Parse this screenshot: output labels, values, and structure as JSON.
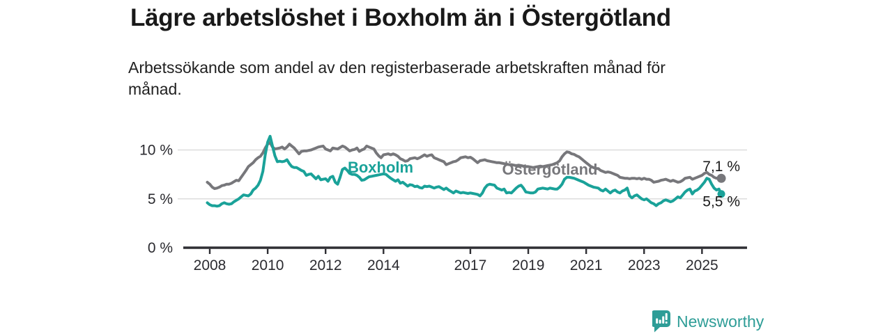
{
  "header": {
    "title": "Lägre arbetslöshet i Boxholm än i Östergötland",
    "subtitle": "Arbetssökande som andel av den registerbaserade arbetskraften månad för månad."
  },
  "footer": {
    "brand": "Newsworthy"
  },
  "colors": {
    "boxholm": "#1AA299",
    "ostergotland": "#77777B",
    "grid": "#DCDCDC",
    "axis": "#2E2E33",
    "tick_text": "#2B2B30",
    "annotation_text": "#1B1B1B",
    "brand_teal": "#2E9D97"
  },
  "chart_data": {
    "type": "line",
    "unit": "%",
    "frequency": "monthly",
    "x_start": "2007-12",
    "x_end": "2025-09",
    "x_ticks": [
      2008,
      2010,
      2012,
      2014,
      2017,
      2019,
      2021,
      2023,
      2025
    ],
    "y_ticks": [
      {
        "value": 0,
        "label": "0 %"
      },
      {
        "value": 5,
        "label": "5 %"
      },
      {
        "value": 10,
        "label": "10 %"
      }
    ],
    "ylim": [
      0,
      12
    ],
    "grid": "horizontal",
    "legend_position": "inline-labels",
    "series": [
      {
        "name": "Östergötland",
        "color": "#77777B",
        "end_label": "7,1 %",
        "last_value": 7.1,
        "values": [
          6.7,
          6.5,
          6.2,
          6.05,
          6.1,
          6.2,
          6.35,
          6.4,
          6.5,
          6.5,
          6.6,
          6.75,
          6.9,
          6.85,
          7.2,
          7.55,
          7.9,
          8.3,
          8.5,
          8.7,
          9.0,
          9.2,
          9.35,
          9.7,
          10.2,
          10.6,
          10.75,
          10.3,
          10.1,
          10.15,
          10.2,
          10.3,
          10.1,
          10.3,
          10.6,
          10.4,
          10.2,
          9.9,
          9.6,
          9.85,
          9.9,
          9.9,
          9.95,
          10.0,
          10.1,
          10.2,
          10.3,
          10.35,
          10.4,
          10.1,
          10.0,
          9.9,
          10.2,
          10.15,
          10.1,
          10.25,
          10.4,
          10.3,
          10.1,
          9.9,
          10.0,
          10.05,
          10.2,
          9.85,
          10.0,
          10.1,
          10.4,
          10.3,
          10.2,
          10.1,
          9.7,
          9.4,
          9.2,
          9.5,
          9.55,
          9.6,
          9.5,
          9.6,
          9.5,
          9.35,
          9.1,
          9.0,
          8.85,
          8.9,
          9.1,
          9.15,
          9.2,
          9.1,
          9.2,
          9.35,
          9.5,
          9.35,
          9.45,
          9.5,
          9.2,
          9.1,
          9.0,
          8.9,
          8.8,
          8.5,
          8.6,
          8.7,
          8.8,
          8.85,
          9.0,
          9.2,
          9.25,
          9.3,
          9.2,
          9.25,
          9.1,
          8.9,
          8.7,
          8.9,
          8.95,
          9.0,
          8.9,
          8.85,
          8.8,
          8.75,
          8.7,
          8.7,
          8.65,
          8.6,
          8.55,
          8.5,
          8.5,
          8.45,
          8.4,
          8.45,
          8.4,
          8.35,
          8.3,
          8.3,
          8.25,
          8.2,
          8.25,
          8.3,
          8.35,
          8.3,
          8.35,
          8.4,
          8.45,
          8.5,
          8.6,
          8.7,
          8.9,
          9.3,
          9.6,
          9.8,
          9.75,
          9.6,
          9.55,
          9.4,
          9.3,
          9.1,
          8.9,
          8.7,
          8.5,
          8.3,
          8.2,
          8.1,
          8.1,
          7.9,
          7.8,
          7.7,
          7.75,
          7.7,
          7.6,
          7.5,
          7.4,
          7.2,
          7.15,
          7.1,
          7.1,
          7.05,
          7.1,
          7.1,
          7.05,
          7.1,
          7.0,
          7.1,
          7.0,
          7.0,
          6.9,
          6.7,
          6.75,
          6.8,
          6.9,
          6.95,
          7.0,
          6.9,
          6.8,
          6.9,
          6.8,
          6.7,
          6.75,
          6.9,
          7.1,
          7.15,
          7.2,
          7.0,
          7.1,
          7.2,
          7.3,
          7.4,
          7.6,
          7.7,
          7.5,
          7.4,
          7.2,
          7.1,
          7.15,
          7.1
        ]
      },
      {
        "name": "Boxholm",
        "color": "#1AA299",
        "end_label": "5,5 %",
        "last_value": 5.5,
        "values": [
          4.6,
          4.4,
          4.3,
          4.3,
          4.25,
          4.3,
          4.5,
          4.6,
          4.5,
          4.45,
          4.5,
          4.7,
          4.85,
          5.0,
          5.2,
          5.4,
          5.35,
          5.3,
          5.5,
          5.9,
          6.1,
          6.4,
          6.9,
          7.8,
          9.5,
          10.8,
          11.4,
          10.4,
          9.4,
          8.8,
          8.85,
          8.8,
          8.85,
          9.0,
          8.6,
          8.3,
          8.2,
          8.2,
          8.05,
          7.9,
          7.8,
          7.4,
          7.5,
          7.55,
          7.3,
          7.05,
          7.3,
          6.95,
          7.0,
          7.05,
          6.8,
          7.2,
          7.3,
          6.7,
          6.5,
          7.2,
          8.0,
          8.15,
          7.9,
          7.6,
          7.5,
          7.5,
          7.4,
          7.2,
          6.9,
          6.95,
          7.1,
          7.25,
          7.3,
          7.35,
          7.4,
          7.45,
          7.5,
          7.55,
          7.5,
          7.3,
          7.1,
          6.95,
          6.8,
          6.95,
          6.6,
          6.7,
          6.5,
          6.3,
          6.45,
          6.4,
          6.25,
          6.3,
          6.15,
          6.1,
          6.3,
          6.25,
          6.3,
          6.2,
          6.1,
          6.2,
          6.25,
          6.1,
          5.95,
          6.1,
          5.9,
          5.75,
          5.6,
          5.8,
          5.7,
          5.6,
          5.65,
          5.6,
          5.55,
          5.6,
          5.55,
          5.5,
          5.45,
          5.3,
          5.6,
          6.1,
          6.4,
          6.5,
          6.45,
          6.4,
          6.1,
          6.0,
          5.9,
          6.0,
          5.6,
          5.65,
          5.6,
          5.85,
          6.1,
          6.3,
          6.4,
          6.1,
          5.7,
          5.65,
          5.6,
          5.6,
          5.7,
          6.0,
          6.05,
          6.1,
          6.05,
          6.0,
          6.1,
          6.05,
          6.0,
          6.0,
          6.2,
          6.5,
          7.0,
          7.2,
          7.2,
          7.15,
          7.1,
          7.0,
          6.9,
          6.8,
          6.7,
          6.55,
          6.4,
          6.3,
          6.2,
          6.15,
          6.1,
          5.9,
          5.8,
          6.0,
          5.8,
          5.6,
          5.8,
          5.9,
          5.7,
          5.6,
          5.8,
          5.9,
          6.1,
          5.3,
          5.1,
          5.3,
          5.4,
          5.2,
          5.0,
          4.9,
          5.0,
          4.8,
          4.6,
          4.5,
          4.3,
          4.5,
          4.6,
          4.8,
          4.9,
          4.8,
          4.7,
          4.8,
          5.0,
          5.2,
          5.1,
          5.4,
          5.7,
          5.9,
          6.0,
          5.5,
          5.8,
          5.9,
          6.1,
          6.4,
          6.7,
          7.1,
          7.0,
          6.5,
          6.1,
          5.9,
          6.0,
          5.5
        ]
      }
    ]
  }
}
